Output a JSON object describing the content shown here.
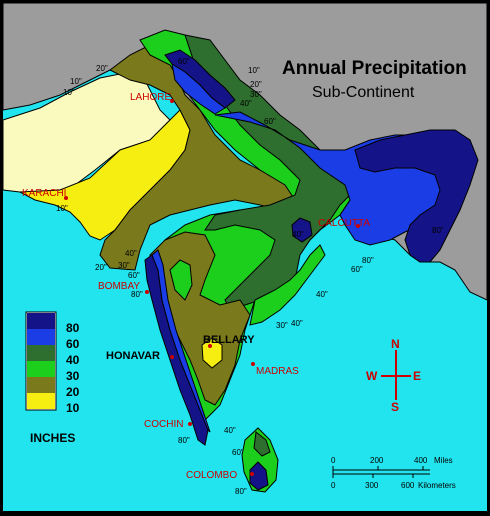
{
  "map": {
    "title": "Annual Precipitation",
    "subtitle": "Sub-Continent"
  },
  "colors": {
    "ocean": "#22e4ee",
    "land_gray": "#9c9c9c",
    "frame": "#000000",
    "c80": "#141488",
    "c60": "#1a3de6",
    "c40": "#2e6e2e",
    "c30": "#1ccf1c",
    "c20": "#7a7a1c",
    "c10": "#f6ee10",
    "clight": "#fafabe",
    "city_red": "#cc0000"
  },
  "legend": {
    "items": [
      {
        "value": "80",
        "color": "#141488"
      },
      {
        "value": "60",
        "color": "#1a3de6"
      },
      {
        "value": "40",
        "color": "#2e6e2e"
      },
      {
        "value": "30",
        "color": "#1ccf1c"
      },
      {
        "value": "20",
        "color": "#7a7a1c"
      },
      {
        "value": "10",
        "color": "#f6ee10"
      }
    ],
    "unit": "INCHES"
  },
  "cities": {
    "lahore": "LAHORE",
    "karachi": "KARACHI",
    "calcutta": "CALCUTTA",
    "bombay": "BOMBAY",
    "honavar": "HONAVAR",
    "bellary": "BELLARY",
    "madras": "MADRAS",
    "cochin": "COCHIN",
    "colombo": "COLOMBO"
  },
  "isohyets": {
    "kar10": "10\"",
    "n20a": "20\"",
    "n10a": "10\"",
    "n10b": "10\"",
    "ne60": "60\"",
    "ne10": "10\"",
    "ne20": "20\"",
    "ne30": "30\"",
    "ne40": "40\"",
    "ne60b": "60\"",
    "cal80": "80\"",
    "cal80b": "80\"",
    "cal60": "60\"",
    "b40": "40\"",
    "b40b": "40\"",
    "w20": "20\"",
    "w30": "30\"",
    "w40": "40\"",
    "w60": "60\"",
    "w80": "80\"",
    "c40": "40\"",
    "s30": "30\"",
    "s80": "80\"",
    "s40": "40\"",
    "s60": "60\"",
    "sl80": "80\""
  },
  "compass": {
    "n": "N",
    "s": "S",
    "e": "E",
    "w": "W"
  },
  "scale": {
    "miles": [
      "0",
      "200",
      "400"
    ],
    "miles_unit": "Miles",
    "km": [
      "0",
      "300",
      "600"
    ],
    "km_unit": "Kilometers"
  }
}
